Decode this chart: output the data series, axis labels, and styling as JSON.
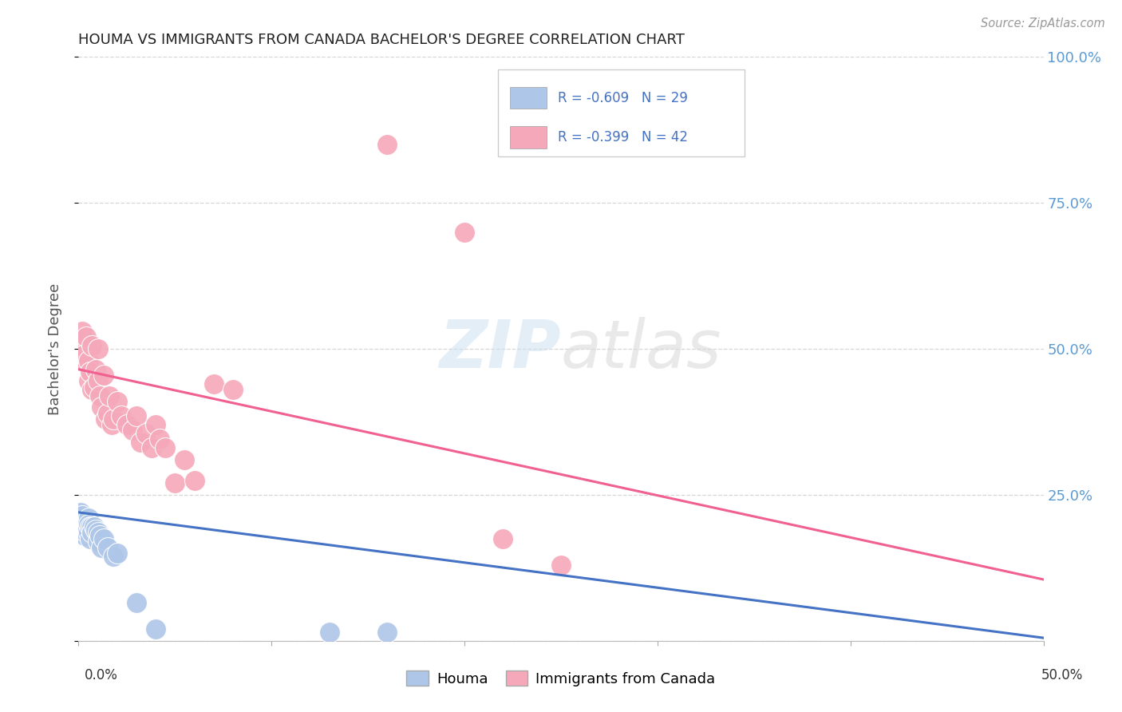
{
  "title": "HOUMA VS IMMIGRANTS FROM CANADA BACHELOR'S DEGREE CORRELATION CHART",
  "source": "Source: ZipAtlas.com",
  "ylabel": "Bachelor's Degree",
  "xlim": [
    0,
    0.5
  ],
  "ylim": [
    0,
    1.0
  ],
  "houma_color": "#aec6e8",
  "canada_color": "#f5a8ba",
  "houma_line_color": "#4472c4",
  "canada_line_color": "#f06090",
  "houma_x": [
    0.001,
    0.002,
    0.002,
    0.003,
    0.003,
    0.003,
    0.004,
    0.004,
    0.005,
    0.005,
    0.005,
    0.006,
    0.006,
    0.007,
    0.007,
    0.008,
    0.009,
    0.01,
    0.01,
    0.011,
    0.012,
    0.013,
    0.015,
    0.018,
    0.02,
    0.03,
    0.04,
    0.13,
    0.16
  ],
  "houma_y": [
    0.22,
    0.215,
    0.195,
    0.205,
    0.195,
    0.18,
    0.2,
    0.185,
    0.21,
    0.2,
    0.185,
    0.195,
    0.175,
    0.195,
    0.185,
    0.195,
    0.19,
    0.185,
    0.17,
    0.18,
    0.16,
    0.175,
    0.16,
    0.145,
    0.15,
    0.065,
    0.02,
    0.015,
    0.015
  ],
  "canada_x": [
    0.001,
    0.002,
    0.002,
    0.003,
    0.004,
    0.005,
    0.005,
    0.006,
    0.007,
    0.007,
    0.008,
    0.009,
    0.01,
    0.01,
    0.011,
    0.012,
    0.013,
    0.014,
    0.015,
    0.016,
    0.017,
    0.018,
    0.02,
    0.022,
    0.025,
    0.028,
    0.03,
    0.032,
    0.035,
    0.038,
    0.04,
    0.042,
    0.045,
    0.05,
    0.055,
    0.06,
    0.07,
    0.08,
    0.16,
    0.2,
    0.22,
    0.25
  ],
  "canada_y": [
    0.51,
    0.53,
    0.48,
    0.49,
    0.52,
    0.48,
    0.445,
    0.46,
    0.505,
    0.43,
    0.435,
    0.465,
    0.445,
    0.5,
    0.42,
    0.4,
    0.455,
    0.38,
    0.39,
    0.42,
    0.37,
    0.38,
    0.41,
    0.385,
    0.37,
    0.36,
    0.385,
    0.34,
    0.355,
    0.33,
    0.37,
    0.345,
    0.33,
    0.27,
    0.31,
    0.275,
    0.44,
    0.43,
    0.85,
    0.7,
    0.175,
    0.13
  ],
  "houma_line_x": [
    0.0,
    0.5
  ],
  "houma_line_y": [
    0.22,
    0.005
  ],
  "canada_line_x": [
    0.0,
    0.5
  ],
  "canada_line_y": [
    0.465,
    0.105
  ],
  "legend_r1": "R = -0.609",
  "legend_n1": "N = 29",
  "legend_r2": "R = -0.399",
  "legend_n2": "N = 42",
  "ytick_vals": [
    0.0,
    0.25,
    0.5,
    0.75,
    1.0
  ],
  "ytick_right_labels": [
    "",
    "25.0%",
    "50.0%",
    "75.0%",
    "100.0%"
  ],
  "xtick_vals": [
    0.0,
    0.1,
    0.2,
    0.3,
    0.4,
    0.5
  ]
}
